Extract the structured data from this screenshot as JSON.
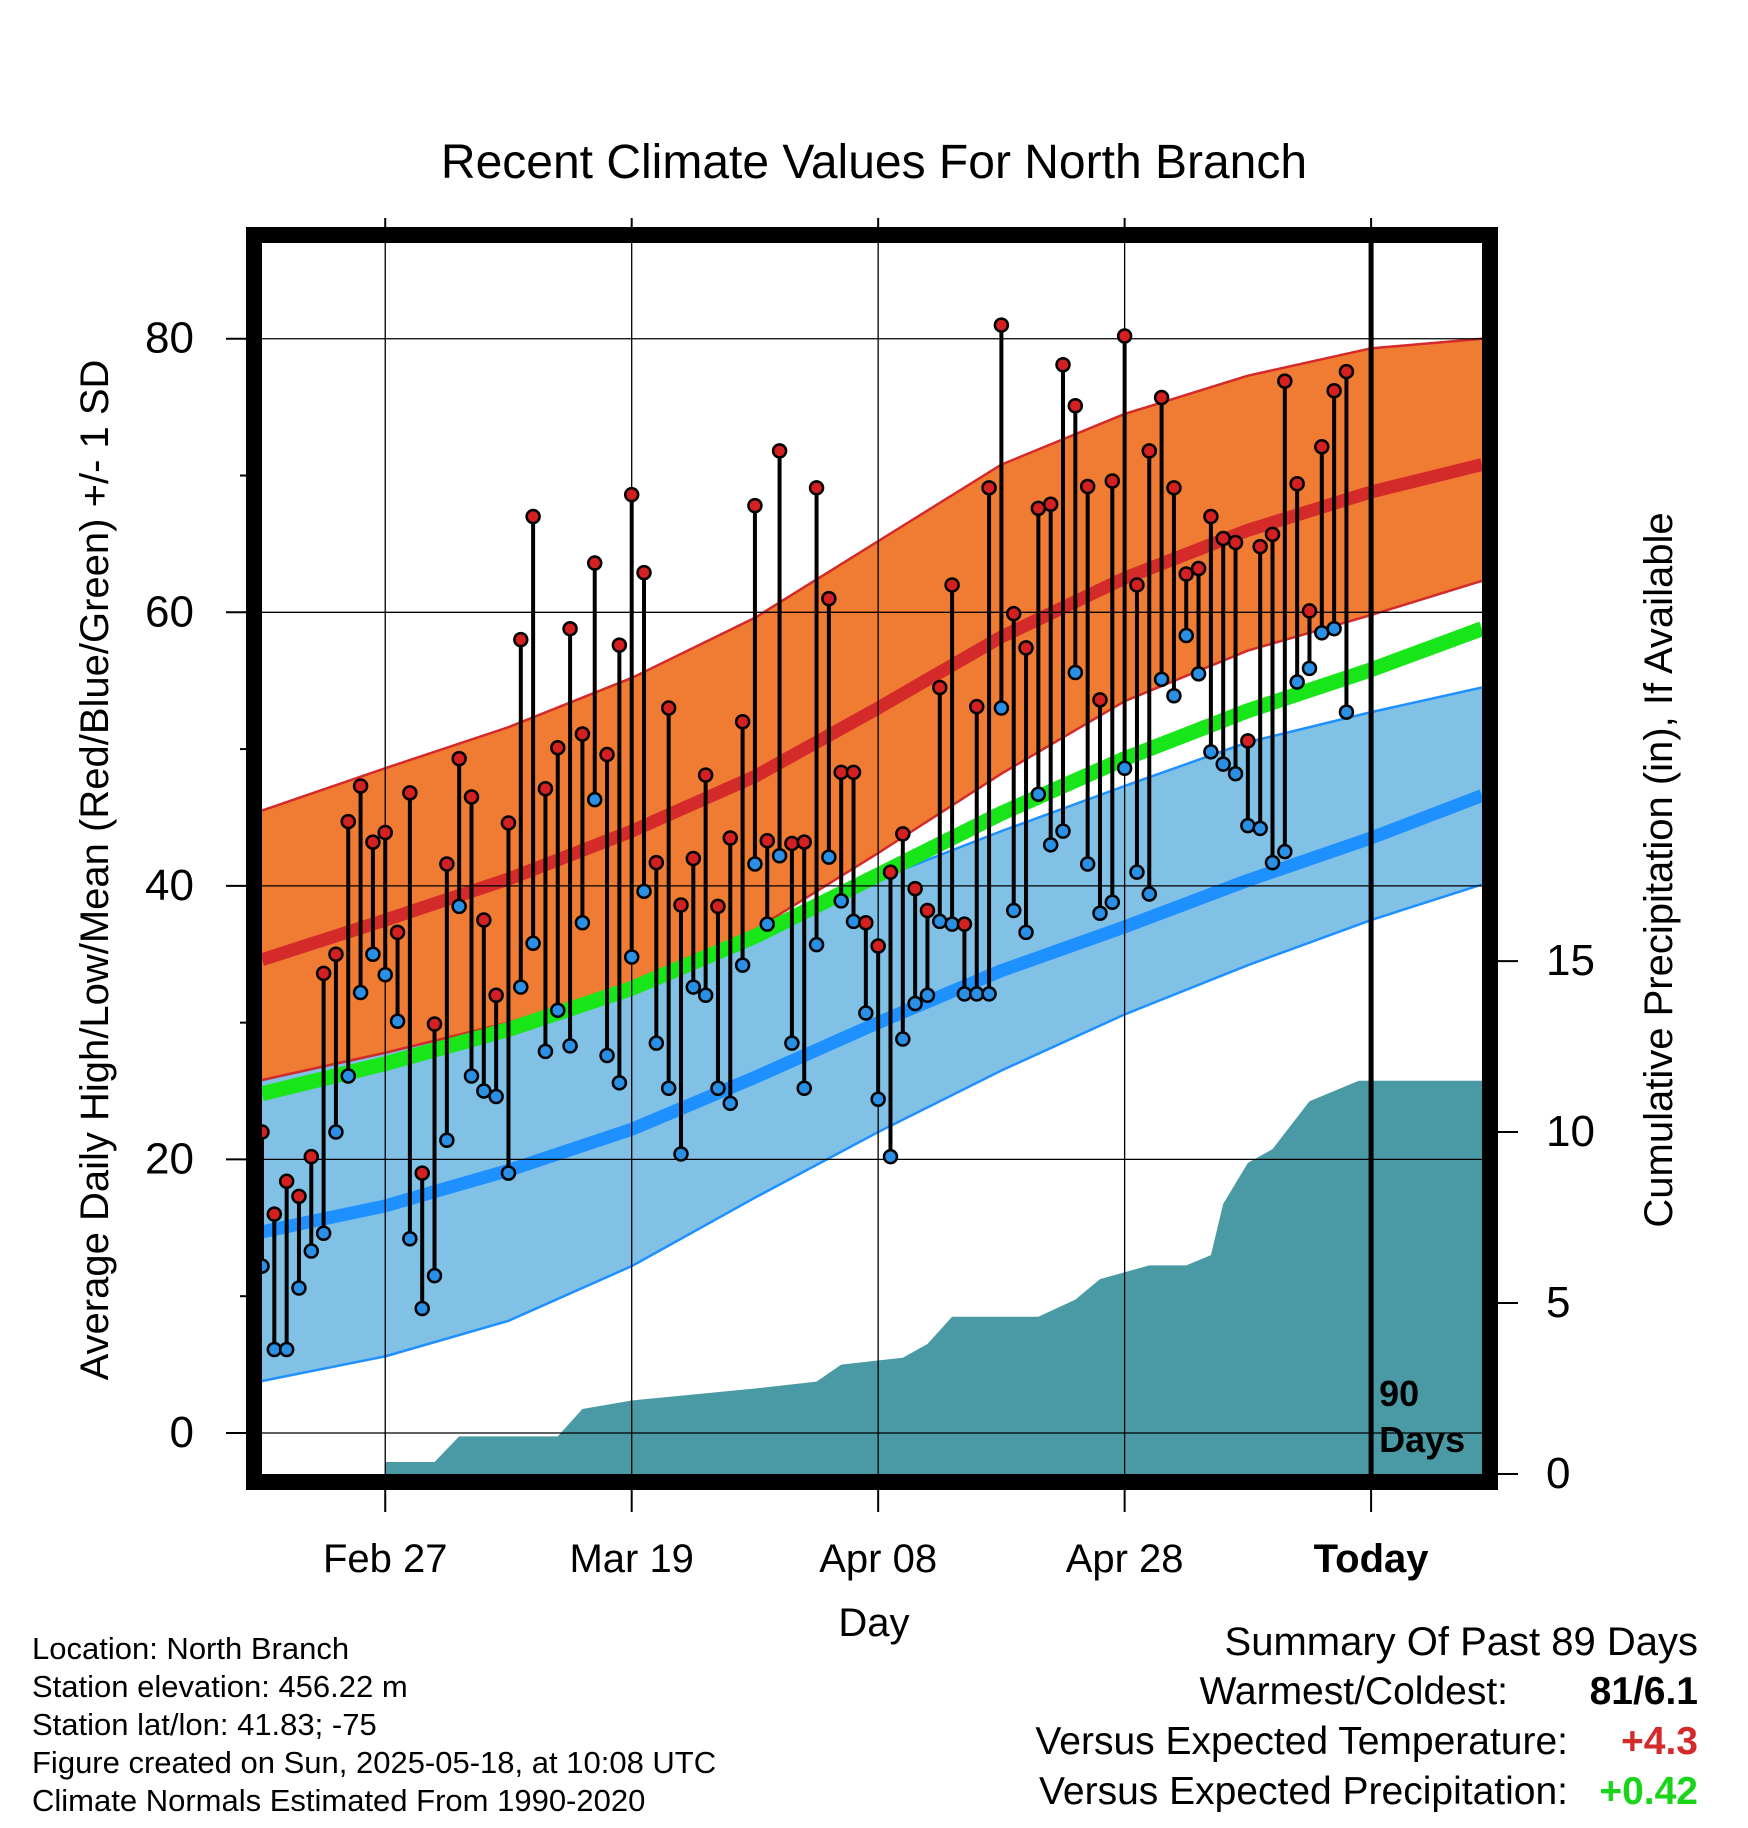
{
  "title": "Recent Climate Values For North Branch",
  "y_axis_label": "Average Daily High/Low/Mean (Red/Blue/Green) +/- 1 SD",
  "y2_axis_label": "Cumulative Precipitation (in), If Available",
  "x_axis_label": "Day",
  "today_marker": {
    "line1": "90",
    "line2": "Days"
  },
  "info": {
    "location": "Location: North Branch",
    "elevation": "Station elevation: 456.22 m",
    "latlon": "Station lat/lon: 41.83; -75",
    "created": "Figure created on Sun, 2025-05-18, at 10:08 UTC",
    "normals": "Climate Normals Estimated From 1990-2020"
  },
  "summary": {
    "heading": "Summary Of Past 89 Days",
    "warm_cold_label": "Warmest/Coldest:",
    "warm_cold_value": "81/6.1",
    "temp_label": "Versus Expected Temperature:",
    "temp_value": "+4.3",
    "precip_label": "Versus Expected Precipitation:",
    "precip_value": "+0.42"
  },
  "colors": {
    "high_band": "#f07c33",
    "normal_high": "#d42a2a",
    "low_band": "#82c1e6",
    "normal_low": "#1e90ff",
    "normal_mean": "#19e619",
    "precip": "#4a9aa5",
    "high_dot": "#d42020",
    "low_dot": "#2a90e6",
    "temp_value": "#d42a2a",
    "precip_value": "#19d419"
  },
  "chart_data": {
    "type": "line",
    "x_range": [
      "2025-02-17",
      "2025-05-27"
    ],
    "x_tick_labels": [
      "Feb 27",
      "Mar 19",
      "Apr 08",
      "Apr 28",
      "Today"
    ],
    "x_tick_dates": [
      "2025-02-27",
      "2025-03-19",
      "2025-04-08",
      "2025-04-28",
      "2025-05-18"
    ],
    "today": "2025-05-18",
    "y_range": [
      -3,
      87
    ],
    "y_ticks": [
      0,
      20,
      40,
      60,
      80
    ],
    "y2_range": [
      0,
      36
    ],
    "y2_ticks": [
      0,
      5,
      10,
      15
    ],
    "observed": {
      "start_date": "2025-02-17",
      "high": [
        22,
        16,
        18.4,
        17.3,
        20.2,
        33.6,
        35,
        44.7,
        47.3,
        43.2,
        43.9,
        36.6,
        46.8,
        19,
        29.9,
        41.6,
        49.3,
        46.5,
        37.5,
        32,
        44.6,
        58,
        67,
        47.1,
        50.1,
        58.8,
        51.1,
        63.6,
        49.6,
        57.6,
        68.6,
        62.9,
        41.7,
        53,
        38.6,
        42,
        48.1,
        38.5,
        43.5,
        52,
        67.8,
        43.3,
        71.8,
        43.1,
        43.2,
        69.1,
        61,
        48.3,
        48.3,
        37.3,
        35.6,
        41,
        43.8,
        39.8,
        38.2,
        54.5,
        62,
        37.2,
        53.1,
        69.1,
        81,
        59.9,
        57.4,
        67.6,
        67.9,
        78.1,
        75.1,
        69.2,
        53.6,
        69.6,
        80.2,
        62,
        71.8,
        75.7,
        69.1,
        62.8,
        63.2,
        67,
        65.4,
        65.1,
        50.6,
        64.8,
        65.7,
        76.9,
        69.4,
        60.1,
        72.1,
        76.2,
        77.6
      ],
      "low": [
        12.2,
        6.1,
        6.1,
        10.6,
        13.3,
        14.6,
        22,
        26.1,
        32.2,
        35,
        33.5,
        30.1,
        14.2,
        9.1,
        11.5,
        21.4,
        38.5,
        26.1,
        25,
        24.6,
        19,
        32.6,
        35.8,
        27.9,
        30.9,
        28.3,
        37.3,
        46.3,
        27.6,
        25.6,
        34.8,
        39.6,
        28.5,
        25.2,
        20.4,
        32.6,
        32,
        25.2,
        24.1,
        34.2,
        41.6,
        37.2,
        42.2,
        28.5,
        25.2,
        35.7,
        42.1,
        38.9,
        37.4,
        30.7,
        24.4,
        20.2,
        28.8,
        31.4,
        32,
        37.4,
        37.2,
        32.1,
        32.1,
        32.1,
        53,
        38.2,
        36.6,
        46.7,
        43,
        44,
        55.6,
        41.6,
        38,
        38.8,
        48.6,
        41,
        39.4,
        55.1,
        53.9,
        58.3,
        55.5,
        49.8,
        48.9,
        48.2,
        44.4,
        44.2,
        41.7,
        42.5,
        54.9,
        55.9,
        58.5,
        58.8,
        52.7
      ]
    },
    "normals": {
      "dates": [
        "2025-02-17",
        "2025-02-27",
        "2025-03-09",
        "2025-03-19",
        "2025-03-29",
        "2025-04-08",
        "2025-04-18",
        "2025-04-28",
        "2025-05-08",
        "2025-05-18",
        "2025-05-27"
      ],
      "high": [
        34.6,
        37.5,
        40.5,
        44,
        48,
        53,
        58.2,
        62.5,
        66,
        68.8,
        70.8
      ],
      "high_upper": [
        45.5,
        48.6,
        51.6,
        55.2,
        59.6,
        65.2,
        70.8,
        74.5,
        77.3,
        79.3,
        80
      ],
      "high_lower": [
        25.8,
        27.8,
        30,
        32.8,
        36.8,
        42.4,
        48.2,
        53.5,
        57.2,
        59.8,
        62.3
      ],
      "mean": [
        24.8,
        27,
        29.5,
        32.5,
        36.3,
        40.8,
        45.3,
        49.3,
        52.8,
        55.8,
        58.8
      ],
      "low": [
        14.7,
        16.6,
        19.2,
        22.2,
        26,
        30,
        33.8,
        37,
        40.4,
        43.5,
        46.6
      ],
      "low_upper": [
        25.8,
        27.8,
        30,
        32.8,
        36.8,
        40.5,
        44,
        47.3,
        50.5,
        52.7,
        54.5
      ],
      "low_lower": [
        3.8,
        5.6,
        8.2,
        12.2,
        17.2,
        22,
        26.5,
        30.6,
        34.2,
        37.5,
        40.1
      ]
    },
    "precip": {
      "dates": [
        "2025-02-27",
        "2025-03-03",
        "2025-03-05",
        "2025-03-13",
        "2025-03-15",
        "2025-03-19",
        "2025-03-29",
        "2025-04-03",
        "2025-04-05",
        "2025-04-10",
        "2025-04-12",
        "2025-04-14",
        "2025-04-21",
        "2025-04-24",
        "2025-04-26",
        "2025-04-30",
        "2025-05-03",
        "2025-05-05",
        "2025-05-06",
        "2025-05-08",
        "2025-05-10",
        "2025-05-13",
        "2025-05-15",
        "2025-05-17",
        "2025-05-27"
      ],
      "values": [
        0.35,
        0.35,
        1.1,
        1.1,
        1.9,
        2.15,
        2.5,
        2.7,
        3.2,
        3.4,
        3.8,
        4.6,
        4.6,
        5.1,
        5.7,
        6.1,
        6.1,
        6.4,
        7.9,
        9.1,
        9.5,
        10.9,
        11.2,
        11.5,
        11.5
      ]
    }
  }
}
